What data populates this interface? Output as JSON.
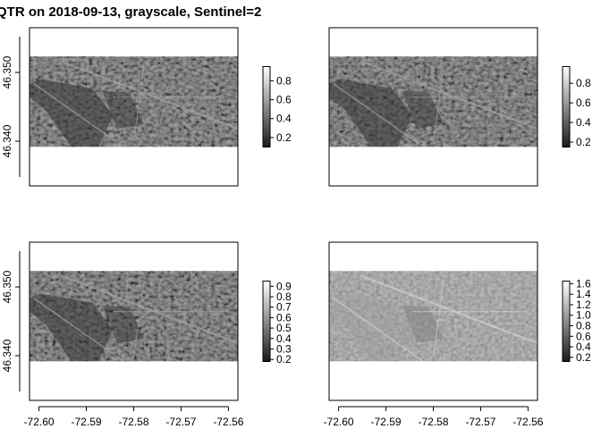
{
  "title": "QTR on 2018-09-13, grayscale, Sentinel=2",
  "colors": {
    "low": "#1a1a1a",
    "high": "#ffffff",
    "frame": "#000000"
  },
  "chart_data": {
    "type": "heatmap",
    "title": "QTR on 2018-09-13, grayscale, Sentinel=2",
    "xlabel": "",
    "ylabel": "",
    "xlim": [
      -72.602,
      -72.558
    ],
    "ylim": [
      46.3335,
      46.3565
    ],
    "image_extent": {
      "x": [
        -72.602,
        -72.557
      ],
      "y": [
        46.3392,
        46.3523
      ]
    },
    "x_ticks": [
      -72.6,
      -72.59,
      -72.58,
      -72.57,
      -72.56
    ],
    "x_tick_labels": [
      "-72.60",
      "-72.59",
      "-72.58",
      "-72.57",
      "-72.56"
    ],
    "y_ticks": [
      46.34,
      46.35
    ],
    "y_tick_labels": [
      "46.340",
      "46.350"
    ],
    "panels": [
      {
        "id": "top-left",
        "legend": {
          "range": [
            0.1,
            0.95
          ],
          "ticks": [
            0.2,
            0.4,
            0.6,
            0.8
          ],
          "labels": [
            "0.2",
            "0.4",
            "0.6",
            "0.8"
          ]
        },
        "show_title": true,
        "show_x_ticks": false,
        "show_y_ticks": true
      },
      {
        "id": "top-right",
        "legend": {
          "range": [
            0.15,
            0.97
          ],
          "ticks": [
            0.2,
            0.4,
            0.6,
            0.8
          ],
          "labels": [
            "0.2",
            "0.4",
            "0.6",
            "0.8"
          ]
        },
        "show_title": false,
        "show_x_ticks": false,
        "show_y_ticks": false
      },
      {
        "id": "bottom-left",
        "legend": {
          "range": [
            0.18,
            0.95
          ],
          "ticks": [
            0.2,
            0.3,
            0.4,
            0.5,
            0.6,
            0.7,
            0.8,
            0.9
          ],
          "labels": [
            "0.2",
            "0.3",
            "0.4",
            "0.5",
            "0.6",
            "0.7",
            "0.8",
            "0.9"
          ]
        },
        "show_title": false,
        "show_x_ticks": true,
        "show_y_ticks": true
      },
      {
        "id": "bottom-right",
        "legend": {
          "range": [
            0.12,
            1.65
          ],
          "ticks": [
            0.2,
            0.4,
            0.6,
            0.8,
            1.0,
            1.2,
            1.4,
            1.6
          ],
          "labels": [
            "0.2",
            "0.4",
            "0.6",
            "0.8",
            "1.0",
            "1.2",
            "1.4",
            "1.6"
          ]
        },
        "show_title": false,
        "show_x_ticks": true,
        "show_y_ticks": false
      }
    ]
  }
}
